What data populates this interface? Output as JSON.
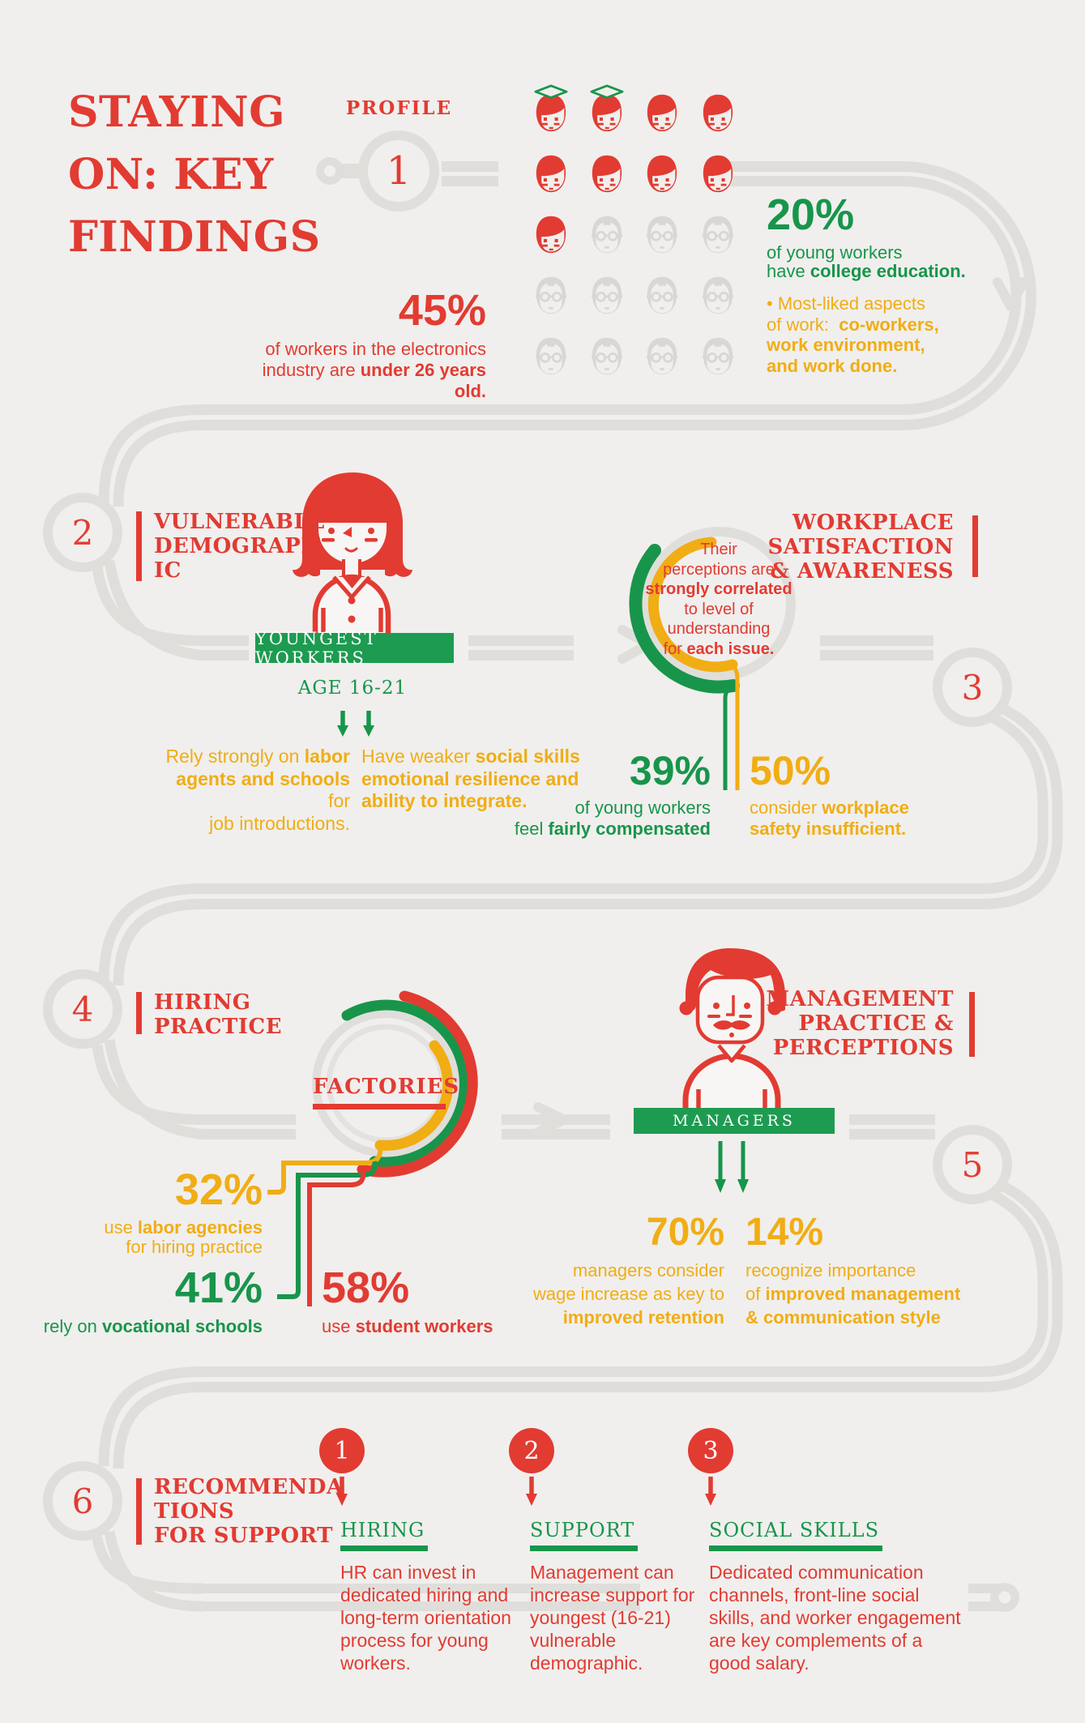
{
  "meta": {
    "background": "#f0efed",
    "accent_red": "#e23b32",
    "accent_green": "#18954b",
    "accent_yellow": "#f1ad14",
    "track_gray": "#e0dedb"
  },
  "title": [
    {
      "t": "STAYING"
    },
    {
      "br": 1
    },
    {
      "t": "ON: KEY"
    },
    {
      "br": 1
    },
    {
      "t": "FINDINGS"
    }
  ],
  "sections": {
    "profile": {
      "number": "1",
      "label": "PROFILE",
      "faces": {
        "rows": [
          [
            "grad",
            "grad",
            "young",
            "young"
          ],
          [
            "young",
            "young",
            "young",
            "young"
          ],
          [
            "young",
            "old",
            "old",
            "old"
          ],
          [
            "old",
            "old",
            "old",
            "old"
          ],
          [
            "old",
            "old",
            "old",
            "old"
          ]
        ]
      },
      "stat_under26": {
        "value": "45%",
        "caption": [
          {
            "t": "of workers in the electronics"
          },
          {
            "br": 1
          },
          {
            "t": "industry are "
          },
          {
            "t": "under 26 years old.",
            "b": 1
          }
        ]
      },
      "stat_college": {
        "value": "20%",
        "caption": [
          {
            "t": "of young workers"
          },
          {
            "br": 1
          },
          {
            "t": "have "
          },
          {
            "t": "college education.",
            "b": 1
          }
        ]
      },
      "liked": [
        {
          "t": "• Most-liked aspects"
        },
        {
          "br": 1
        },
        {
          "t": "of work:  "
        },
        {
          "t": "co-workers,",
          "b": 1
        },
        {
          "br": 1
        },
        {
          "t": "work environment,",
          "b": 1
        },
        {
          "br": 1
        },
        {
          "t": "and work done.",
          "b": 1
        }
      ]
    },
    "vulnerable": {
      "number": "2",
      "title": [
        {
          "t": "VULNERABLE"
        },
        {
          "br": 1
        },
        {
          "t": "DEMOGRAPH"
        },
        {
          "br": 1
        },
        {
          "t": "IC"
        }
      ],
      "banner": "YOUNGEST WORKERS",
      "age": "AGE 16-21",
      "p1": [
        {
          "t": "Rely strongly on "
        },
        {
          "t": "labor",
          "b": 1
        },
        {
          "br": 1
        },
        {
          "t": "agents and schools",
          "b": 1
        },
        {
          "t": " for"
        },
        {
          "br": 1
        },
        {
          "t": "job introductions."
        }
      ],
      "p2": [
        {
          "t": "Have weaker "
        },
        {
          "t": "social skills",
          "b": 1
        },
        {
          "br": 1
        },
        {
          "t": "emotional resilience and",
          "b": 1
        },
        {
          "br": 1
        },
        {
          "t": "ability to integrate.",
          "b": 1
        }
      ]
    },
    "satisfaction": {
      "number": "3",
      "title": [
        {
          "t": "WORKPLACE"
        },
        {
          "br": 1
        },
        {
          "t": "SATISFACTION"
        },
        {
          "br": 1
        },
        {
          "t": "& AWARENESS"
        }
      ],
      "ring_note": [
        {
          "t": "Their"
        },
        {
          "br": 1
        },
        {
          "t": "perceptions are"
        },
        {
          "br": 1
        },
        {
          "t": "strongly correlated",
          "b": 1
        },
        {
          "br": 1
        },
        {
          "t": "to level of"
        },
        {
          "br": 1
        },
        {
          "t": "understanding"
        },
        {
          "br": 1
        },
        {
          "t": "for "
        },
        {
          "t": "each issue.",
          "b": 1
        }
      ],
      "stat_compensated": {
        "value": "39%",
        "caption": [
          {
            "t": "of young workers"
          },
          {
            "br": 1
          },
          {
            "t": "feel "
          },
          {
            "t": "fairly compensated",
            "b": 1
          }
        ]
      },
      "stat_safety": {
        "value": "50%",
        "caption": [
          {
            "t": "consider "
          },
          {
            "t": "workplace",
            "b": 1
          },
          {
            "br": 1
          },
          {
            "t": "safety insufficient.",
            "b": 1
          }
        ]
      }
    },
    "hiring": {
      "number": "4",
      "title": [
        {
          "t": "HIRING"
        },
        {
          "br": 1
        },
        {
          "t": "PRACTICE"
        }
      ],
      "chart_label": "FACTORIES",
      "stat_agencies": {
        "value": "32%",
        "caption": [
          {
            "t": "use "
          },
          {
            "t": "labor agencies",
            "b": 1
          },
          {
            "br": 1
          },
          {
            "t": "for hiring practice"
          }
        ]
      },
      "stat_schools": {
        "value": "41%",
        "caption": [
          {
            "t": "rely on "
          },
          {
            "t": "vocational schools",
            "b": 1
          }
        ]
      },
      "stat_students": {
        "value": "58%",
        "caption": [
          {
            "t": "use "
          },
          {
            "t": "student workers",
            "b": 1
          }
        ]
      }
    },
    "management": {
      "number": "5",
      "title": [
        {
          "t": "MANAGEMENT"
        },
        {
          "br": 1
        },
        {
          "t": "PRACTICE &"
        },
        {
          "br": 1
        },
        {
          "t": "PERCEPTIONS"
        }
      ],
      "banner": "MANAGERS",
      "stat_wage": {
        "value": "70%",
        "caption": [
          {
            "t": "managers consider"
          },
          {
            "br": 1
          },
          {
            "t": "wage increase as key to"
          },
          {
            "br": 1
          },
          {
            "t": "improved retention",
            "b": 1
          }
        ]
      },
      "stat_style": {
        "value": "14%",
        "caption": [
          {
            "t": "recognize importance"
          },
          {
            "br": 1
          },
          {
            "t": "of "
          },
          {
            "t": "improved management",
            "b": 1
          },
          {
            "br": 1
          },
          {
            "t": "& communication style",
            "b": 1
          }
        ]
      }
    },
    "recommendations": {
      "number": "6",
      "title": [
        {
          "t": "RECOMMENDA"
        },
        {
          "br": 1
        },
        {
          "t": "TIONS"
        },
        {
          "br": 1
        },
        {
          "t": "FOR SUPPORT"
        }
      ],
      "items": [
        {
          "badge": "1",
          "heading": "HIRING",
          "body": [
            {
              "t": "HR can invest in"
            },
            {
              "br": 1
            },
            {
              "t": "dedicated hiring and"
            },
            {
              "br": 1
            },
            {
              "t": "long-term orientation"
            },
            {
              "br": 1
            },
            {
              "t": "process for young"
            },
            {
              "br": 1
            },
            {
              "t": "workers."
            }
          ]
        },
        {
          "badge": "2",
          "heading": "SUPPORT",
          "body": [
            {
              "t": "Management can"
            },
            {
              "br": 1
            },
            {
              "t": "increase support for"
            },
            {
              "br": 1
            },
            {
              "t": "youngest (16-21)"
            },
            {
              "br": 1
            },
            {
              "t": "vulnerable"
            },
            {
              "br": 1
            },
            {
              "t": "demographic."
            }
          ]
        },
        {
          "badge": "3",
          "heading": "SOCIAL SKILLS",
          "body": [
            {
              "t": "Dedicated communication"
            },
            {
              "br": 1
            },
            {
              "t": "channels, front-line social"
            },
            {
              "br": 1
            },
            {
              "t": "skills, and worker engagement"
            },
            {
              "br": 1
            },
            {
              "t": "are key complements of a"
            },
            {
              "br": 1
            },
            {
              "t": "good salary."
            }
          ]
        }
      ]
    }
  },
  "chart_data": [
    {
      "type": "pictogram",
      "title": "Workforce profile",
      "categories": [
        "young workers with college education",
        "young workers",
        "older workers"
      ],
      "values": [
        2,
        7,
        11
      ],
      "unit": "faces out of 20",
      "annotations": [
        "45% of workers in the electronics industry are under 26 years old",
        "20% of young workers have college education"
      ]
    },
    {
      "type": "donut",
      "title": "Workplace satisfaction & awareness",
      "legend_position": "below",
      "series": [
        {
          "name": "of young workers feel fairly compensated",
          "value": 39,
          "color": "#18954b"
        },
        {
          "name": "consider workplace safety insufficient",
          "value": 50,
          "color": "#f1ad14"
        }
      ]
    },
    {
      "type": "donut",
      "title": "Factories hiring practice",
      "legend_position": "below",
      "series": [
        {
          "name": "use labor agencies for hiring practice",
          "value": 32,
          "color": "#f1ad14"
        },
        {
          "name": "rely on vocational schools",
          "value": 41,
          "color": "#18954b"
        },
        {
          "name": "use student workers",
          "value": 58,
          "color": "#e23b32"
        }
      ]
    },
    {
      "type": "bar",
      "title": "Managers",
      "categories": [
        "consider wage increase as key to improved retention",
        "recognize importance of improved management & communication style"
      ],
      "values": [
        70,
        14
      ],
      "ylim": [
        0,
        100
      ]
    }
  ]
}
